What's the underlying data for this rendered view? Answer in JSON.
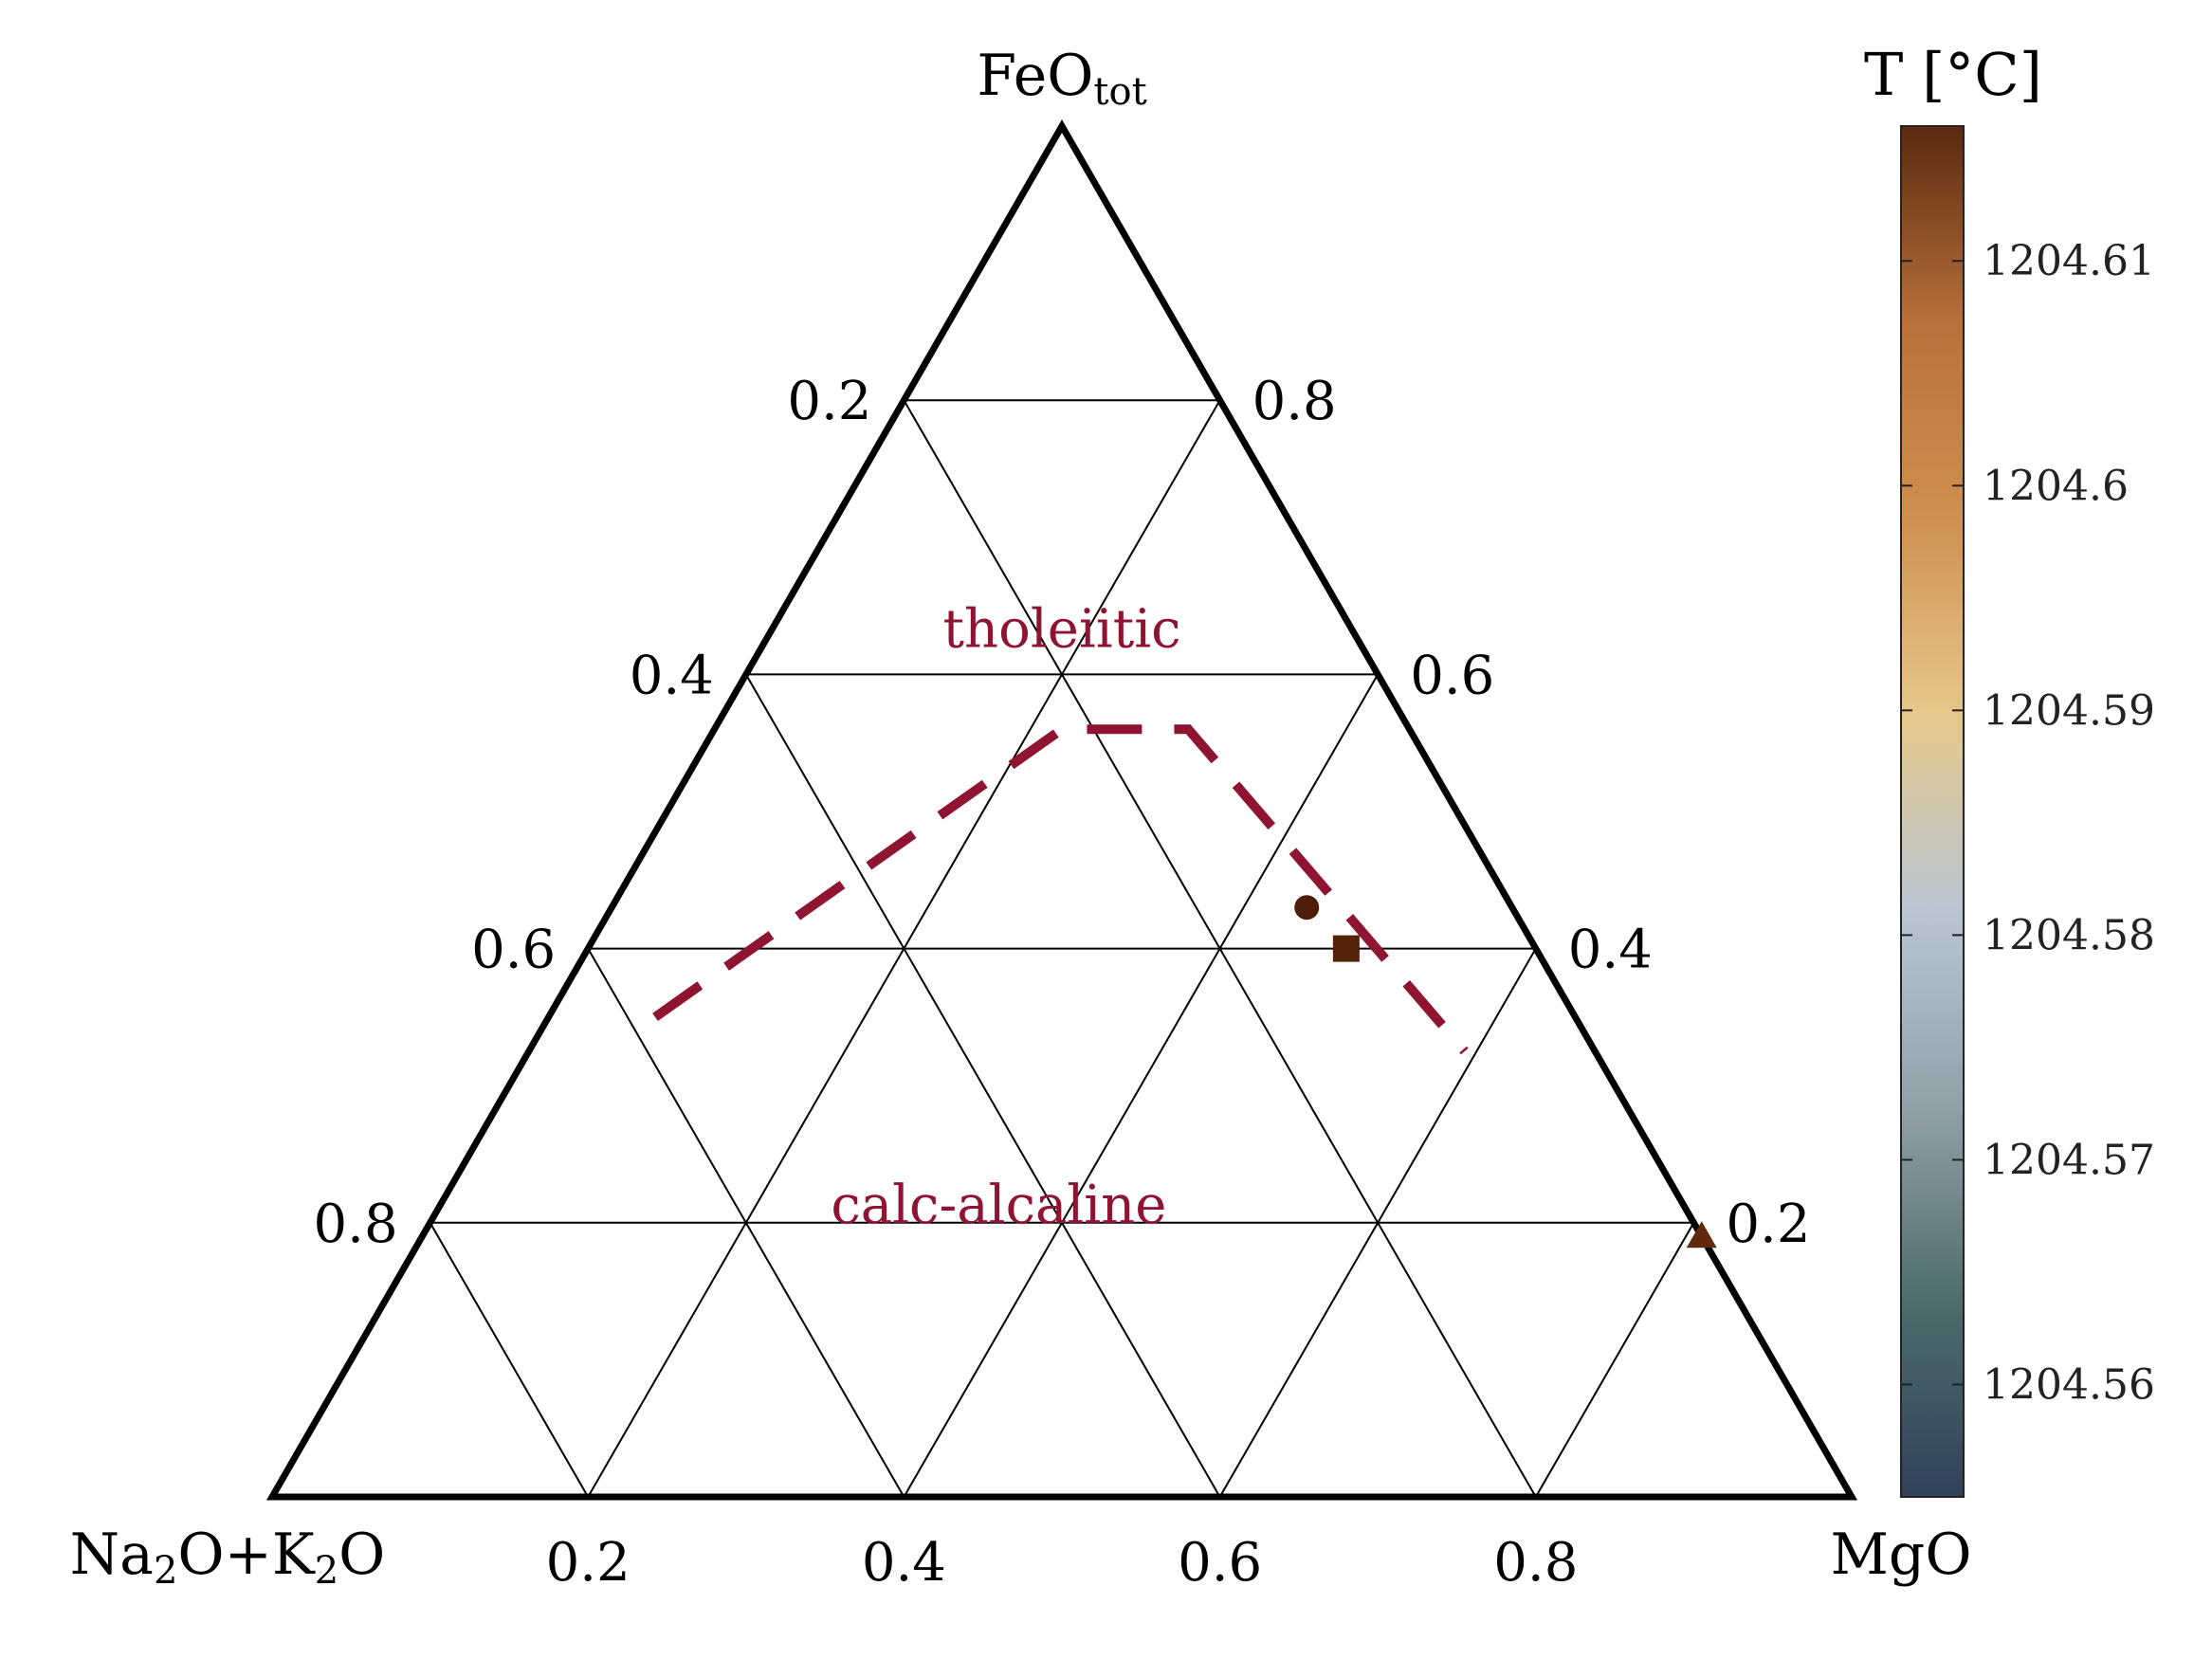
{
  "chart_data": {
    "type": "ternary",
    "vertices": {
      "top": "FeO",
      "top_sub": "tot",
      "left_parts": [
        "Na",
        "2",
        "O+K",
        "2",
        "O"
      ],
      "right": "MgO"
    },
    "ticks": {
      "bottom": [
        "0.2",
        "0.4",
        "0.6",
        "0.8"
      ],
      "left": [
        "0.2",
        "0.4",
        "0.6",
        "0.8"
      ],
      "right": [
        "0.8",
        "0.6",
        "0.4",
        "0.2"
      ]
    },
    "grid_step": 0.2,
    "regions": [
      {
        "label": "tholeiitic",
        "feo": 0.62,
        "mgo": 0.19
      },
      {
        "label": "calc-alcaline",
        "feo": 0.2,
        "mgo": 0.36
      }
    ],
    "boundary_line": {
      "color": "#8f1432",
      "points": [
        {
          "feo": 0.35,
          "mgo": 0.0675
        },
        {
          "feo": 0.56,
          "mgo": 0.22
        },
        {
          "feo": 0.56,
          "mgo": 0.3
        },
        {
          "feo": 0.325,
          "mgo": 0.5925
        }
      ]
    },
    "points": [
      {
        "marker": "circle",
        "feo": 0.43,
        "mgo": 0.44,
        "color": "#4d1e0a"
      },
      {
        "marker": "square",
        "feo": 0.4,
        "mgo": 0.48,
        "color": "#55220a"
      },
      {
        "marker": "triangle",
        "feo": 0.19,
        "mgo": 0.81,
        "color": "#612a0e"
      }
    ],
    "colorbar": {
      "title": "T [°C]",
      "min": 1204.555,
      "max": 1204.616,
      "ticks": [
        "1204.56",
        "1204.57",
        "1204.58",
        "1204.59",
        "1204.6",
        "1204.61"
      ],
      "tick_values": [
        1204.56,
        1204.57,
        1204.58,
        1204.59,
        1204.6,
        1204.61
      ],
      "colors": [
        "#30425a",
        "#4f6c6e",
        "#91a1aa",
        "#b9c6d2",
        "#e6c78a",
        "#cf9050",
        "#b9703a",
        "#5a2a10"
      ]
    }
  }
}
